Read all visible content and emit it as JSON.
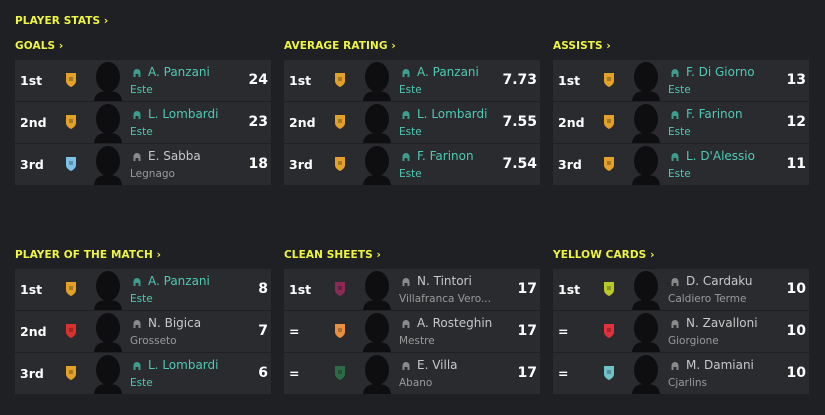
{
  "header": {
    "title": "PLAYER STATS ›"
  },
  "colors": {
    "accent": "#eef542",
    "teal": "#4fc9b4",
    "background": "#1f2023",
    "row": "#2a2b2f"
  },
  "sections": [
    {
      "title": "GOALS ›",
      "rows": [
        {
          "rank": "1st",
          "name": "A. Panzani",
          "club": "Este",
          "value": "24",
          "highlight": true,
          "badge": "#e3a12a"
        },
        {
          "rank": "2nd",
          "name": "L. Lombardi",
          "club": "Este",
          "value": "23",
          "highlight": true,
          "badge": "#e3a12a"
        },
        {
          "rank": "3rd",
          "name": "E. Sabba",
          "club": "Legnago",
          "value": "18",
          "highlight": false,
          "badge": "#7cc2e8"
        }
      ]
    },
    {
      "title": "AVERAGE RATING ›",
      "rows": [
        {
          "rank": "1st",
          "name": "A. Panzani",
          "club": "Este",
          "value": "7.73",
          "highlight": true,
          "badge": "#e3a12a"
        },
        {
          "rank": "2nd",
          "name": "L. Lombardi",
          "club": "Este",
          "value": "7.55",
          "highlight": true,
          "badge": "#e3a12a"
        },
        {
          "rank": "3rd",
          "name": "F. Farinon",
          "club": "Este",
          "value": "7.54",
          "highlight": true,
          "badge": "#e3a12a"
        }
      ]
    },
    {
      "title": "ASSISTS ›",
      "rows": [
        {
          "rank": "1st",
          "name": "F. Di Giorno",
          "club": "Este",
          "value": "13",
          "highlight": true,
          "badge": "#e3a12a"
        },
        {
          "rank": "2nd",
          "name": "F. Farinon",
          "club": "Este",
          "value": "12",
          "highlight": true,
          "badge": "#e3a12a"
        },
        {
          "rank": "3rd",
          "name": "L. D'Alessio",
          "club": "Este",
          "value": "11",
          "highlight": true,
          "badge": "#e3a12a"
        }
      ]
    },
    {
      "title": "PLAYER OF THE MATCH ›",
      "rows": [
        {
          "rank": "1st",
          "name": "A. Panzani",
          "club": "Este",
          "value": "8",
          "highlight": true,
          "badge": "#e3a12a"
        },
        {
          "rank": "2nd",
          "name": "N. Bigica",
          "club": "Grosseto",
          "value": "7",
          "highlight": false,
          "badge": "#d9322e"
        },
        {
          "rank": "3rd",
          "name": "L. Lombardi",
          "club": "Este",
          "value": "6",
          "highlight": true,
          "badge": "#e3a12a"
        }
      ]
    },
    {
      "title": "CLEAN SHEETS ›",
      "rows": [
        {
          "rank": "1st",
          "name": "N. Tintori",
          "club": "Villafranca Vero...",
          "value": "17",
          "highlight": false,
          "badge": "#8a2a55"
        },
        {
          "rank": "=",
          "name": "A. Rosteghin",
          "club": "Mestre",
          "value": "17",
          "highlight": false,
          "badge": "#e8903e"
        },
        {
          "rank": "=",
          "name": "E. Villa",
          "club": "Abano",
          "value": "17",
          "highlight": false,
          "badge": "#2c6b45"
        }
      ]
    },
    {
      "title": "YELLOW CARDS ›",
      "rows": [
        {
          "rank": "1st",
          "name": "D. Cardaku",
          "club": "Caldiero Terme",
          "value": "10",
          "highlight": false,
          "badge": "#b8c92a"
        },
        {
          "rank": "=",
          "name": "N. Zavalloni",
          "club": "Giorgione",
          "value": "10",
          "highlight": false,
          "badge": "#e0323e"
        },
        {
          "rank": "=",
          "name": "M. Damiani",
          "club": "Cjarlins",
          "value": "10",
          "highlight": false,
          "badge": "#6fc2c8"
        }
      ]
    }
  ]
}
